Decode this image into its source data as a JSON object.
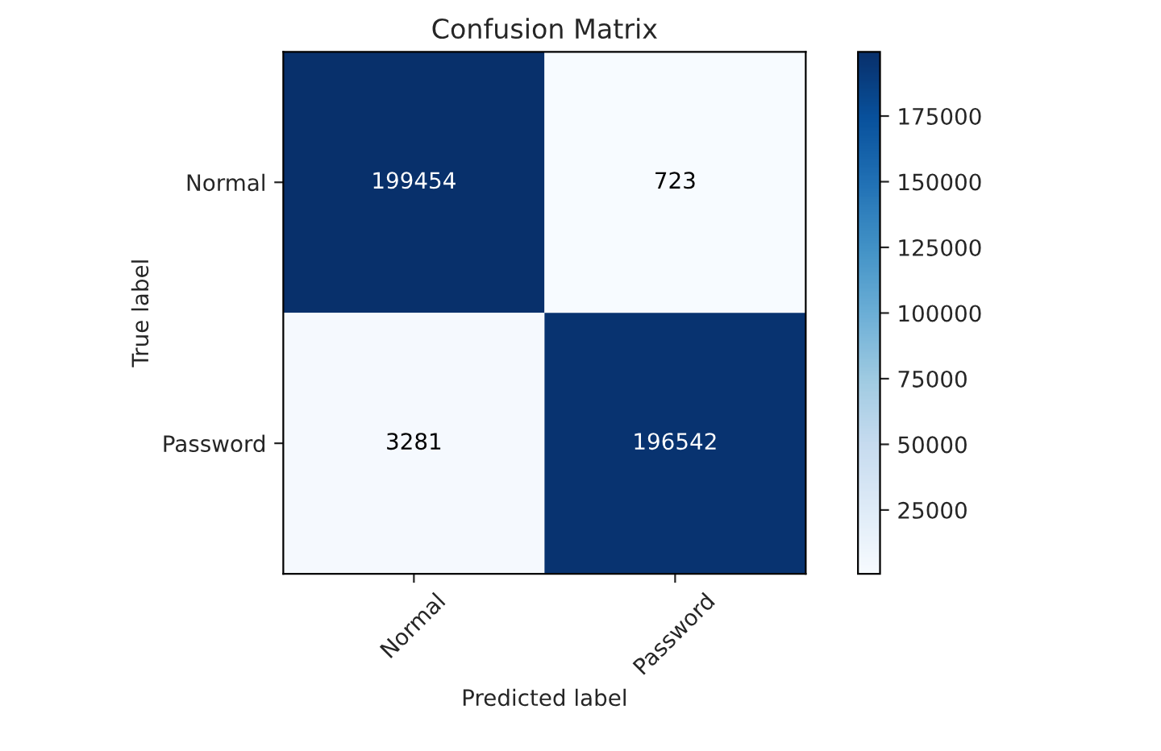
{
  "chart_data": {
    "type": "heatmap",
    "title": "Confusion Matrix",
    "xlabel": "Predicted label",
    "ylabel": "True label",
    "categories": [
      "Normal",
      "Password"
    ],
    "y_categories": [
      "Normal",
      "Password"
    ],
    "cells": [
      [
        199454,
        723
      ],
      [
        3281,
        196542
      ]
    ],
    "clim": [
      723,
      199454
    ],
    "cticks": [
      25000,
      50000,
      75000,
      100000,
      125000,
      150000,
      175000
    ],
    "data_labels": true
  }
}
